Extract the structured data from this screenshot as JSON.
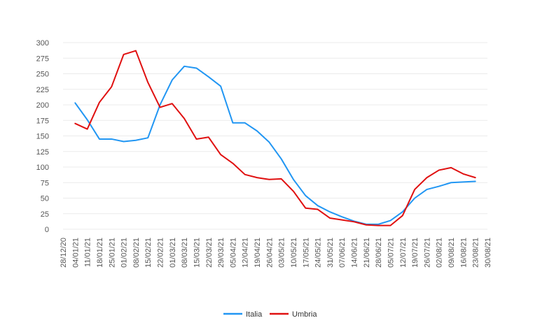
{
  "chart_data": {
    "type": "line",
    "title": "",
    "xlabel": "",
    "ylabel": "",
    "ylim": [
      0,
      300
    ],
    "yticks": [
      0,
      25,
      50,
      75,
      100,
      125,
      150,
      175,
      200,
      225,
      250,
      275,
      300
    ],
    "grid": true,
    "legend_position": "bottom",
    "categories": [
      "28/12/20",
      "04/01/21",
      "11/01/21",
      "18/01/21",
      "25/01/21",
      "01/02/21",
      "08/02/21",
      "15/02/21",
      "22/02/21",
      "01/03/21",
      "08/03/21",
      "15/03/21",
      "22/03/21",
      "29/03/21",
      "05/04/21",
      "12/04/21",
      "19/04/21",
      "26/04/21",
      "03/05/21",
      "10/05/21",
      "17/05/21",
      "24/05/21",
      "31/05/21",
      "07/06/21",
      "14/06/21",
      "21/06/21",
      "28/06/21",
      "05/07/21",
      "12/07/21",
      "19/07/21",
      "26/07/21",
      "02/08/21",
      "09/08/21",
      "16/08/21",
      "23/08/21",
      "30/08/21"
    ],
    "series": [
      {
        "name": "Italia",
        "color": "#2196f3",
        "values": [
          null,
          203,
          176,
          145,
          145,
          141,
          143,
          147,
          200,
          240,
          262,
          259,
          245,
          230,
          171,
          171,
          158,
          140,
          113,
          80,
          54,
          38,
          28,
          20,
          13,
          8,
          8,
          14,
          28,
          50,
          64,
          69,
          75,
          76,
          77,
          null
        ]
      },
      {
        "name": "Umbria",
        "color": "#e01010",
        "values": [
          null,
          170,
          161,
          204,
          229,
          281,
          287,
          236,
          196,
          202,
          178,
          145,
          148,
          120,
          106,
          88,
          83,
          80,
          81,
          61,
          34,
          32,
          18,
          15,
          12,
          7,
          6,
          6,
          22,
          64,
          83,
          95,
          99,
          89,
          83,
          null
        ]
      }
    ]
  }
}
